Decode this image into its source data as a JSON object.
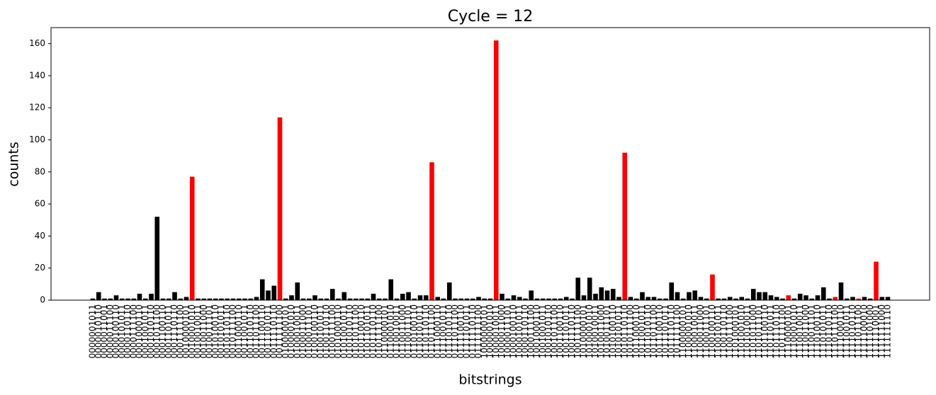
{
  "chart_data": {
    "type": "bar",
    "title": "Cycle  = 12",
    "x_label": "bitstrings",
    "y_label": "counts",
    "categories": [
      "0000001011",
      "0000010110",
      "0000011001",
      "0000011100",
      "0000100110",
      "0000101011",
      "0000110110",
      "0000111100",
      "0001000110",
      "0001001011",
      "0001010110",
      "0001011100",
      "0001100110",
      "0001101011",
      "0001110110",
      "0001111100",
      "0010000101",
      "0010001010",
      "0010010011",
      "0010011000",
      "0010011101",
      "0010100110",
      "0010101011",
      "0010110110",
      "0010111100",
      "0011000110",
      "0011001011",
      "0011010110",
      "0011011100",
      "0011100110",
      "0011101011",
      "0011110110",
      "0011111100",
      "0100000101",
      "0100001010",
      "0100010011",
      "0100011000",
      "0100011101",
      "0100100110",
      "0100101011",
      "0100110110",
      "0100111100",
      "0101000110",
      "0101001011",
      "0101010110",
      "0101011100",
      "0101100110",
      "0101101011",
      "0101110110",
      "0101111100",
      "0110000101",
      "0110001010",
      "0110010011",
      "0110011000",
      "0110011101",
      "0110100110",
      "0110101011",
      "0110110110",
      "0110111100",
      "0111000110",
      "0111001011",
      "0111010110",
      "0111011100",
      "0111100110",
      "0111101011",
      "0111110110",
      "0111111100",
      "1000000101",
      "1000001010",
      "1000010011",
      "1000011000",
      "1000011101",
      "1000100110",
      "1000101011",
      "1000110110",
      "1000111100",
      "1001000110",
      "1001001011",
      "1001010110",
      "1001011100",
      "1001100110",
      "1001101011",
      "1001110110",
      "1001111100",
      "1010000101",
      "1010001010",
      "1010010011",
      "1010011000",
      "1010011101",
      "1010100110",
      "1010101011",
      "1010110110",
      "1010111100",
      "1011000110",
      "1011001011",
      "1011010110",
      "1011011100",
      "1011100110",
      "1011101011",
      "1011110110",
      "1011111100",
      "1100000101",
      "1100001010",
      "1100010011",
      "1100011000",
      "1100011101",
      "1100100110",
      "1100101011",
      "1100110110",
      "1100111100",
      "1101000101",
      "1101001010",
      "1101010011",
      "1101011000",
      "1101011101",
      "1101100110",
      "1101101011",
      "1101110110",
      "1101111100",
      "1110000101",
      "1110001010",
      "1110010011",
      "1110011000",
      "1110011101",
      "1110100110",
      "1110101011",
      "1110110110",
      "1110111100",
      "1111000110",
      "1111001011",
      "1111010110",
      "1111011100",
      "1111100010",
      "1111101000",
      "1111110001",
      "1111111000",
      "1111111110"
    ],
    "values": [
      1,
      5,
      1,
      1,
      3,
      1,
      1,
      1,
      4,
      1,
      4,
      52,
      1,
      1,
      5,
      1,
      2,
      77,
      1,
      1,
      1,
      1,
      1,
      1,
      1,
      1,
      1,
      1,
      2,
      13,
      6,
      9,
      114,
      1,
      3,
      11,
      1,
      1,
      3,
      1,
      1,
      7,
      1,
      5,
      1,
      1,
      1,
      1,
      4,
      1,
      1,
      13,
      1,
      4,
      5,
      1,
      3,
      3,
      86,
      2,
      1,
      11,
      1,
      1,
      1,
      1,
      2,
      1,
      1,
      162,
      4,
      1,
      3,
      2,
      1,
      6,
      1,
      1,
      1,
      1,
      1,
      2,
      1,
      14,
      3,
      14,
      4,
      8,
      6,
      7,
      2,
      92,
      2,
      1,
      5,
      2,
      2,
      1,
      1,
      11,
      5,
      1,
      5,
      6,
      2,
      1,
      16,
      1,
      1,
      2,
      1,
      2,
      1,
      7,
      5,
      5,
      3,
      2,
      1,
      3,
      1,
      4,
      3,
      1,
      3,
      8,
      1,
      2,
      11,
      1,
      2,
      1,
      2,
      1,
      24,
      2,
      2
    ],
    "colors": [
      "#000000",
      "#000000",
      "#000000",
      "#000000",
      "#000000",
      "#000000",
      "#000000",
      "#000000",
      "#000000",
      "#000000",
      "#000000",
      "#000000",
      "#000000",
      "#000000",
      "#000000",
      "#000000",
      "#000000",
      "#ff0000",
      "#000000",
      "#000000",
      "#000000",
      "#000000",
      "#000000",
      "#000000",
      "#000000",
      "#000000",
      "#000000",
      "#000000",
      "#000000",
      "#000000",
      "#000000",
      "#000000",
      "#ff0000",
      "#000000",
      "#000000",
      "#000000",
      "#000000",
      "#000000",
      "#000000",
      "#000000",
      "#000000",
      "#000000",
      "#000000",
      "#000000",
      "#000000",
      "#000000",
      "#000000",
      "#000000",
      "#000000",
      "#000000",
      "#000000",
      "#000000",
      "#000000",
      "#000000",
      "#000000",
      "#000000",
      "#000000",
      "#000000",
      "#ff0000",
      "#000000",
      "#000000",
      "#000000",
      "#000000",
      "#000000",
      "#000000",
      "#000000",
      "#000000",
      "#000000",
      "#000000",
      "#ff0000",
      "#000000",
      "#000000",
      "#000000",
      "#000000",
      "#000000",
      "#000000",
      "#000000",
      "#000000",
      "#000000",
      "#000000",
      "#000000",
      "#000000",
      "#000000",
      "#000000",
      "#000000",
      "#000000",
      "#000000",
      "#000000",
      "#000000",
      "#000000",
      "#000000",
      "#ff0000",
      "#000000",
      "#000000",
      "#000000",
      "#000000",
      "#000000",
      "#000000",
      "#000000",
      "#000000",
      "#000000",
      "#000000",
      "#000000",
      "#000000",
      "#000000",
      "#000000",
      "#ff0000",
      "#000000",
      "#000000",
      "#000000",
      "#000000",
      "#000000",
      "#000000",
      "#000000",
      "#000000",
      "#000000",
      "#000000",
      "#000000",
      "#000000",
      "#ff0000",
      "#000000",
      "#000000",
      "#000000",
      "#000000",
      "#000000",
      "#000000",
      "#000000",
      "#ff0000",
      "#000000",
      "#000000",
      "#000000",
      "#ff0000",
      "#000000",
      "#000000",
      "#ff0000",
      "#000000",
      "#000000"
    ],
    "ylim": [
      0,
      170
    ],
    "yticks": [
      0,
      20,
      40,
      60,
      80,
      100,
      120,
      140,
      160
    ],
    "grid": false
  }
}
